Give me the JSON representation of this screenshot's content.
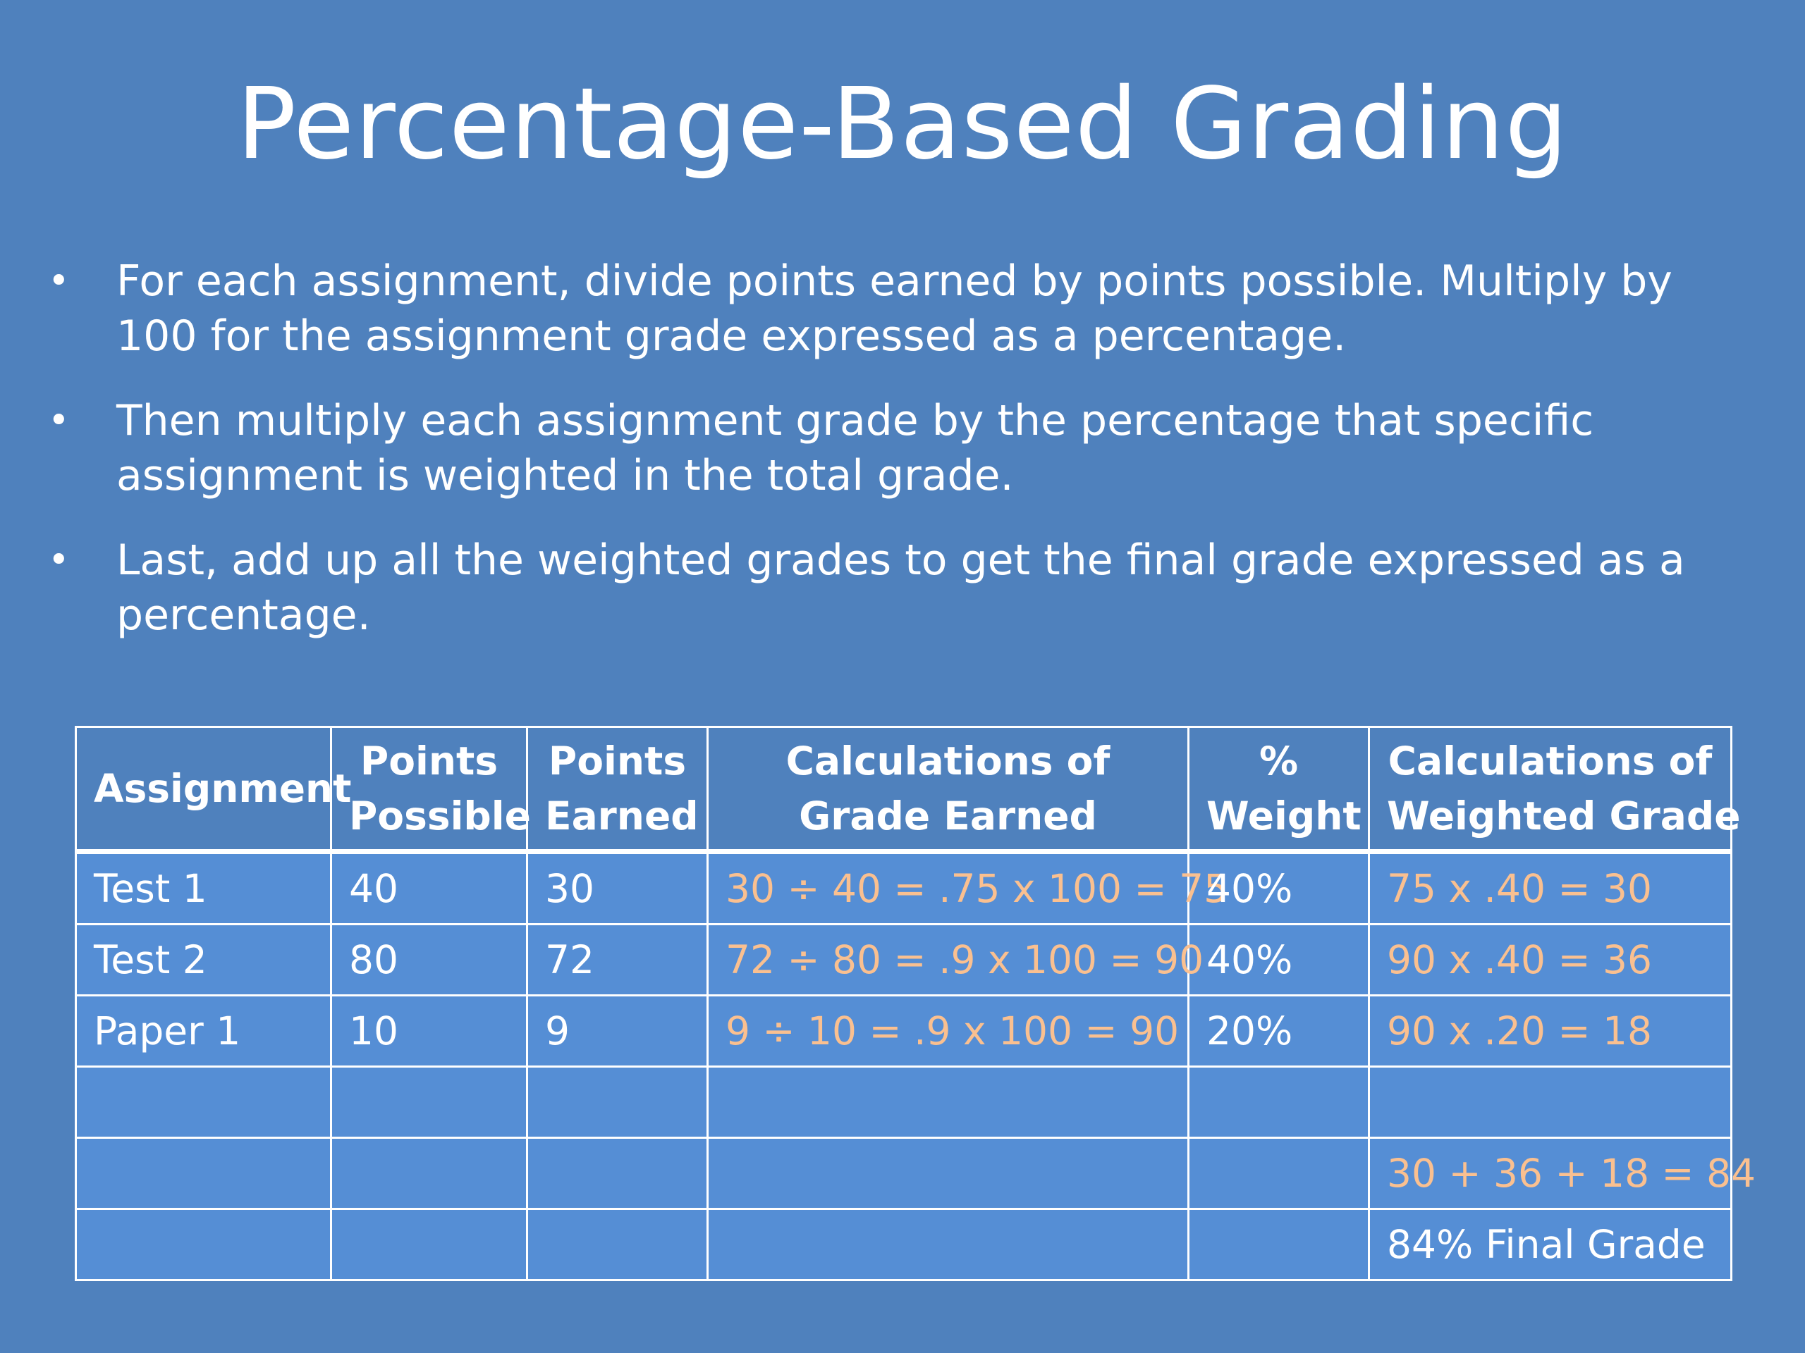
{
  "slide": {
    "title": "Percentage-Based Grading",
    "bullets": [
      "For each assignment, divide points earned by points possible. Multiply by 100 for the assignment grade expressed as a percentage.",
      "Then multiply each assignment grade by the percentage that specific assignment is weighted in the total grade.",
      "Last, add up all the weighted grades to get the final grade expressed as a percentage."
    ],
    "bullet_symbol": "•"
  },
  "table": {
    "headers": [
      [
        "Assignment"
      ],
      [
        "Points",
        "Possible"
      ],
      [
        "Points",
        "Earned"
      ],
      [
        "Calculations of",
        "Grade Earned"
      ],
      [
        "%",
        "Weight"
      ],
      [
        "Calculations of",
        "Weighted Grade"
      ]
    ],
    "rows": [
      [
        "Test 1",
        "40",
        "30",
        "30 ÷ 40 = .75 x 100 = 75",
        "40%",
        "75 x .40 = 30"
      ],
      [
        "Test 2",
        "80",
        "72",
        "72 ÷ 80 = .9 x 100 = 90",
        "40%",
        "90 x .40 = 36"
      ],
      [
        "Paper 1",
        "10",
        "9",
        "9 ÷  10 = .9 x 100 = 90",
        "20%",
        "90 x .20 = 18"
      ],
      [
        "",
        "",
        "",
        "",
        "",
        ""
      ],
      [
        "",
        "",
        "",
        "",
        "",
        "30 + 36 + 18 = 84"
      ],
      [
        "",
        "",
        "",
        "",
        "",
        "84% Final Grade"
      ]
    ]
  },
  "colors": {
    "background": "#4f81bd",
    "cell_fill": "#558ed5",
    "text": "#ffffff",
    "calculation_text": "#fac090"
  }
}
